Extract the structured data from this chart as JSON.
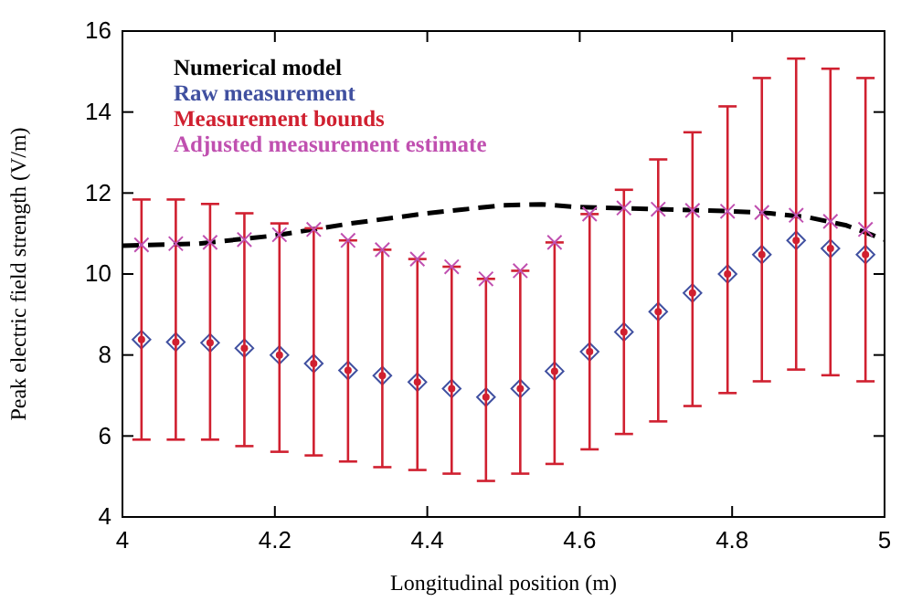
{
  "chart_data": {
    "type": "scatter",
    "xlabel": "Longitudinal position (m)",
    "ylabel": "Peak electric field strength (V/m)",
    "xlim": [
      4,
      5
    ],
    "xticks": [
      4,
      4.2,
      4.4,
      4.6,
      4.8,
      5
    ],
    "ylim": [
      4,
      16
    ],
    "yticks": [
      4,
      6,
      8,
      10,
      12,
      14,
      16
    ],
    "legend": "top left",
    "series": [
      {
        "name": "Numerical model",
        "type": "line",
        "color": "#000000",
        "line_style": "dashed",
        "marker": "none",
        "x": [
          4.0,
          4.1,
          4.2,
          4.3,
          4.4,
          4.5,
          4.55,
          4.6,
          4.7,
          4.8,
          4.85,
          4.9,
          4.95,
          5.0
        ],
        "values": [
          10.7,
          10.75,
          10.95,
          11.25,
          11.5,
          11.7,
          11.72,
          11.65,
          11.6,
          11.55,
          11.5,
          11.4,
          11.2,
          10.85
        ]
      },
      {
        "name": "Raw measurement",
        "type": "scatter",
        "color": "#4050a0",
        "marker": "diamond",
        "x": [
          4.025,
          4.07,
          4.115,
          4.16,
          4.206,
          4.251,
          4.296,
          4.341,
          4.387,
          4.432,
          4.477,
          4.522,
          4.567,
          4.613,
          4.658,
          4.703,
          4.748,
          4.794,
          4.839,
          4.884,
          4.929,
          4.975
        ],
        "values": [
          8.38,
          8.32,
          8.3,
          8.17,
          8.0,
          7.79,
          7.62,
          7.49,
          7.33,
          7.17,
          6.96,
          7.17,
          7.6,
          8.08,
          8.57,
          9.07,
          9.53,
          10.0,
          10.48,
          10.83,
          10.63,
          10.48
        ]
      },
      {
        "name": "Measurement bounds",
        "type": "scatter",
        "color": "#d02030",
        "marker": "circle",
        "x": [
          4.025,
          4.07,
          4.115,
          4.16,
          4.206,
          4.251,
          4.296,
          4.341,
          4.387,
          4.432,
          4.477,
          4.522,
          4.567,
          4.613,
          4.658,
          4.703,
          4.748,
          4.794,
          4.839,
          4.884,
          4.929,
          4.975
        ],
        "values": [
          8.38,
          8.32,
          8.3,
          8.17,
          8.0,
          7.79,
          7.62,
          7.49,
          7.33,
          7.17,
          6.96,
          7.17,
          7.6,
          8.08,
          8.57,
          9.07,
          9.53,
          10.0,
          10.48,
          10.83,
          10.63,
          10.48
        ],
        "errors": [
          [
            5.91,
            11.84
          ],
          [
            5.91,
            11.84
          ],
          [
            5.91,
            11.73
          ],
          [
            5.75,
            11.5
          ],
          [
            5.61,
            11.25
          ],
          [
            5.52,
            11.13
          ],
          [
            5.37,
            10.83
          ],
          [
            5.23,
            10.6
          ],
          [
            5.16,
            10.37
          ],
          [
            5.07,
            10.18
          ],
          [
            4.89,
            9.88
          ],
          [
            5.07,
            10.08
          ],
          [
            5.31,
            10.78
          ],
          [
            5.67,
            11.48
          ],
          [
            6.05,
            12.08
          ],
          [
            6.36,
            12.83
          ],
          [
            6.74,
            13.5
          ],
          [
            7.06,
            14.14
          ],
          [
            7.35,
            14.84
          ],
          [
            7.64,
            15.32
          ],
          [
            7.5,
            15.07
          ],
          [
            7.35,
            14.84
          ]
        ]
      },
      {
        "name": "Adjusted measurement estimate",
        "type": "scatter",
        "color": "#c050b0",
        "marker": "cross",
        "x": [
          4.025,
          4.07,
          4.115,
          4.16,
          4.206,
          4.251,
          4.296,
          4.341,
          4.387,
          4.432,
          4.477,
          4.522,
          4.567,
          4.613,
          4.658,
          4.703,
          4.748,
          4.794,
          4.839,
          4.884,
          4.929,
          4.975
        ],
        "values": [
          10.72,
          10.75,
          10.78,
          10.85,
          10.97,
          11.1,
          10.83,
          10.6,
          10.37,
          10.18,
          9.88,
          10.08,
          10.78,
          11.48,
          11.63,
          11.6,
          11.57,
          11.55,
          11.52,
          11.45,
          11.3,
          11.1
        ]
      }
    ]
  }
}
